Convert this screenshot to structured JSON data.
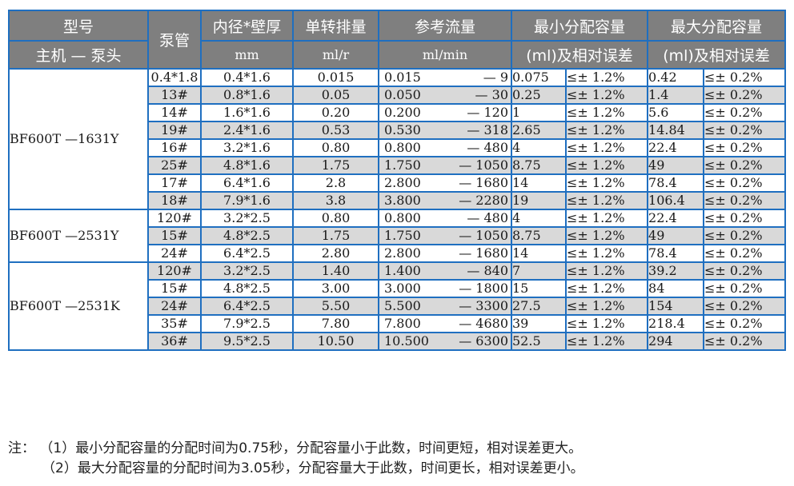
{
  "header": {
    "model": "型号",
    "model_sub": "主机 — 泵头",
    "tube": "泵管",
    "dia": "内径*壁厚",
    "dia_unit": "mm",
    "disp": "单转排量",
    "disp_unit": "ml/r",
    "flow": "参考流量",
    "flow_unit": "ml/min",
    "min": "最小分配容量",
    "min_sub": "(ml)及相对误差",
    "max": "最大分配容量",
    "max_sub": "(ml)及相对误差"
  },
  "groups": [
    {
      "model": "BF600T —1631Y",
      "rows": [
        {
          "tube": "0.4*1.8",
          "dia": "0.4*1.6",
          "disp": "0.015",
          "flow_min": "0.015",
          "flow_max": "— 9",
          "min": "0.075",
          "min_err": "≤± 1.2%",
          "max": "0.42",
          "max_err": "≤± 0.2%"
        },
        {
          "tube": "13#",
          "dia": "0.8*1.6",
          "disp": "0.05",
          "flow_min": "0.050",
          "flow_max": "— 30",
          "min": "0.25",
          "min_err": "≤± 1.2%",
          "max": "1.4",
          "max_err": "≤± 0.2%"
        },
        {
          "tube": "14#",
          "dia": "1.6*1.6",
          "disp": "0.20",
          "flow_min": "0.200",
          "flow_max": "— 120",
          "min": "1",
          "min_err": "≤± 1.2%",
          "max": "5.6",
          "max_err": "≤± 0.2%"
        },
        {
          "tube": "19#",
          "dia": "2.4*1.6",
          "disp": "0.53",
          "flow_min": "0.530",
          "flow_max": "— 318",
          "min": "2.65",
          "min_err": "≤± 1.2%",
          "max": "14.84",
          "max_err": "≤± 0.2%"
        },
        {
          "tube": "16#",
          "dia": "3.2*1.6",
          "disp": "0.80",
          "flow_min": "0.800",
          "flow_max": "— 480",
          "min": "4",
          "min_err": "≤± 1.2%",
          "max": "22.4",
          "max_err": "≤± 0.2%"
        },
        {
          "tube": "25#",
          "dia": "4.8*1.6",
          "disp": "1.75",
          "flow_min": "1.750",
          "flow_max": "— 1050",
          "min": "8.75",
          "min_err": "≤± 1.2%",
          "max": "49",
          "max_err": "≤± 0.2%"
        },
        {
          "tube": "17#",
          "dia": "6.4*1.6",
          "disp": "2.8",
          "flow_min": "2.800",
          "flow_max": "— 1680",
          "min": "14",
          "min_err": "≤± 1.2%",
          "max": "78.4",
          "max_err": "≤± 0.2%"
        },
        {
          "tube": "18#",
          "dia": "7.9*1.6",
          "disp": "3.8",
          "flow_min": "3.800",
          "flow_max": "— 2280",
          "min": "19",
          "min_err": "≤± 1.2%",
          "max": "106.4",
          "max_err": "≤± 0.2%"
        }
      ]
    },
    {
      "model": "BF600T —2531Y",
      "rows": [
        {
          "tube": "120#",
          "dia": "3.2*2.5",
          "disp": "0.80",
          "flow_min": "0.800",
          "flow_max": "— 480",
          "min": "4",
          "min_err": "≤± 1.2%",
          "max": "22.4",
          "max_err": "≤± 0.2%"
        },
        {
          "tube": "15#",
          "dia": "4.8*2.5",
          "disp": "1.75",
          "flow_min": "1.750",
          "flow_max": "— 1050",
          "min": "8.75",
          "min_err": "≤± 1.2%",
          "max": "49",
          "max_err": "≤± 0.2%"
        },
        {
          "tube": "24#",
          "dia": "6.4*2.5",
          "disp": "2.80",
          "flow_min": "2.800",
          "flow_max": "— 1680",
          "min": "14",
          "min_err": "≤± 1.2%",
          "max": "78.4",
          "max_err": "≤± 0.2%"
        }
      ]
    },
    {
      "model": "BF600T —2531K",
      "rows": [
        {
          "tube": "120#",
          "dia": "3.2*2.5",
          "disp": "1.40",
          "flow_min": "1.400",
          "flow_max": "— 840",
          "min": "7",
          "min_err": "≤± 1.2%",
          "max": "39.2",
          "max_err": "≤± 0.2%"
        },
        {
          "tube": "15#",
          "dia": "4.8*2.5",
          "disp": "3.00",
          "flow_min": "3.000",
          "flow_max": "— 1800",
          "min": "15",
          "min_err": "≤± 1.2%",
          "max": "84",
          "max_err": "≤± 0.2%"
        },
        {
          "tube": "24#",
          "dia": "6.4*2.5",
          "disp": "5.50",
          "flow_min": "5.500",
          "flow_max": "— 3300",
          "min": "27.5",
          "min_err": "≤± 1.2%",
          "max": "154",
          "max_err": "≤± 0.2%"
        },
        {
          "tube": "35#",
          "dia": "7.9*2.5",
          "disp": "7.80",
          "flow_min": "7.800",
          "flow_max": "— 4680",
          "min": "39",
          "min_err": "≤± 1.2%",
          "max": "218.4",
          "max_err": "≤± 0.2%"
        },
        {
          "tube": "36#",
          "dia": "9.5*2.5",
          "disp": "10.50",
          "flow_min": "10.500",
          "flow_max": "— 6300",
          "min": "52.5",
          "min_err": "≤± 1.2%",
          "max": "294",
          "max_err": "≤± 0.2%"
        }
      ]
    }
  ],
  "notes": {
    "n1": "注： （1）最小分配容量的分配时间为0.75秒，分配容量小于此数，时间更短，相对误差更大。",
    "n2": "（2）最大分配容量的分配时间为3.05秒，分配容量大于此数，时间更长，相对误差更小。"
  },
  "colors": {
    "header_bg": "#7f7f7f",
    "border": "#1f6fc0",
    "shade": "#d9d9d9"
  }
}
